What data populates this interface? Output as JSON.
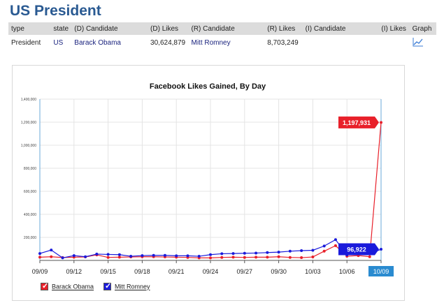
{
  "header": {
    "title": "US President"
  },
  "table": {
    "headers": [
      "type",
      "state",
      "(D) Candidate",
      "(D) Likes",
      "(R) Candidate",
      "(R) Likes",
      "(I) Candidate",
      "(I) Likes",
      "Graph"
    ],
    "row": {
      "type": "President",
      "state": "US",
      "d_candidate": "Barack Obama",
      "d_likes": "30,624,879",
      "r_candidate": "Mitt Romney",
      "r_likes": "8,703,249",
      "i_candidate": "",
      "i_likes": ""
    }
  },
  "colors": {
    "obama": "#e8202a",
    "romney": "#1a1adb",
    "accent": "#2a5a92",
    "axis_highlight": "#2a8bd0"
  },
  "chart_data": {
    "type": "line",
    "title": "Facebook Likes Gained, By Day",
    "ylim": [
      0,
      1400000
    ],
    "yticks": [
      "1,400,000",
      "1,200,000",
      "1,000,000",
      "800,000",
      "600,000",
      "400,000",
      "200,000"
    ],
    "ytick_values": [
      1400000,
      1200000,
      1000000,
      800000,
      600000,
      400000,
      200000
    ],
    "x_labels": [
      "09/09",
      "09/12",
      "09/15",
      "09/18",
      "09/21",
      "09/24",
      "09/27",
      "09/30",
      "10/03",
      "10/06",
      "10/09"
    ],
    "x_label_index": [
      0,
      3,
      6,
      9,
      12,
      15,
      18,
      21,
      24,
      27,
      30
    ],
    "series": [
      {
        "name": "Barack Obama",
        "color": "#e8202a",
        "values": [
          28000,
          32000,
          25000,
          28000,
          30000,
          48000,
          26000,
          28000,
          30000,
          32000,
          32000,
          30000,
          28000,
          26000,
          22000,
          22000,
          26000,
          28000,
          26000,
          28000,
          28000,
          32000,
          26000,
          24000,
          30000,
          80000,
          128000,
          36000,
          42000,
          32000,
          1197931
        ],
        "end_label": "1,197,931"
      },
      {
        "name": "Mitt Romney",
        "color": "#1a1adb",
        "values": [
          60000,
          90000,
          22000,
          42000,
          32000,
          55000,
          52000,
          50000,
          36000,
          42000,
          44000,
          44000,
          40000,
          40000,
          36000,
          50000,
          58000,
          60000,
          62000,
          64000,
          68000,
          72000,
          80000,
          85000,
          88000,
          125000,
          180000,
          48000,
          60000,
          58000,
          96922
        ],
        "end_label": "96,922"
      }
    ],
    "highlight_x_label": "10/09",
    "legend": "bottom-left"
  }
}
